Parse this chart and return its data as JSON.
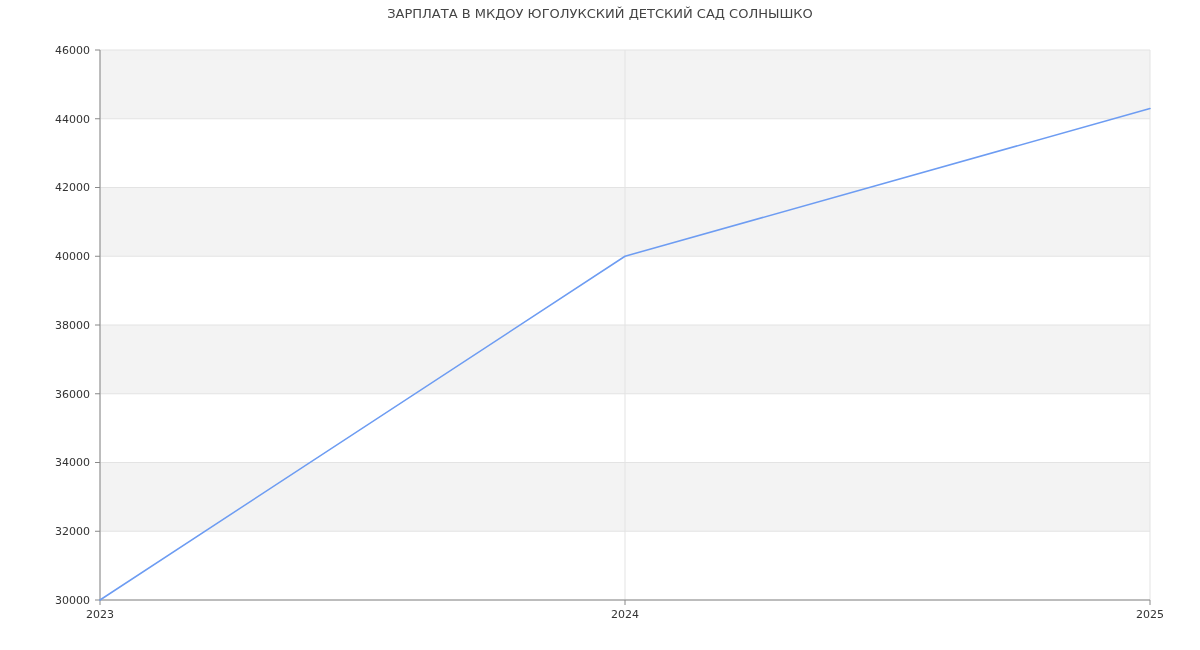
{
  "chart_data": {
    "type": "line",
    "title": "ЗАРПЛАТА В МКДОУ ЮГОЛУКСКИЙ ДЕТСКИЙ САД СОЛНЫШКО",
    "x": [
      2023,
      2024,
      2025
    ],
    "series": [
      {
        "color": "#6d9cf2",
        "values": [
          30000,
          40000,
          44300
        ]
      }
    ],
    "xlim": [
      2023,
      2025
    ],
    "xticks": [
      2023,
      2024,
      2025
    ],
    "ylim": [
      30000,
      46000
    ],
    "yticks": [
      30000,
      32000,
      34000,
      36000,
      38000,
      40000,
      42000,
      44000,
      46000
    ],
    "grid": true
  }
}
